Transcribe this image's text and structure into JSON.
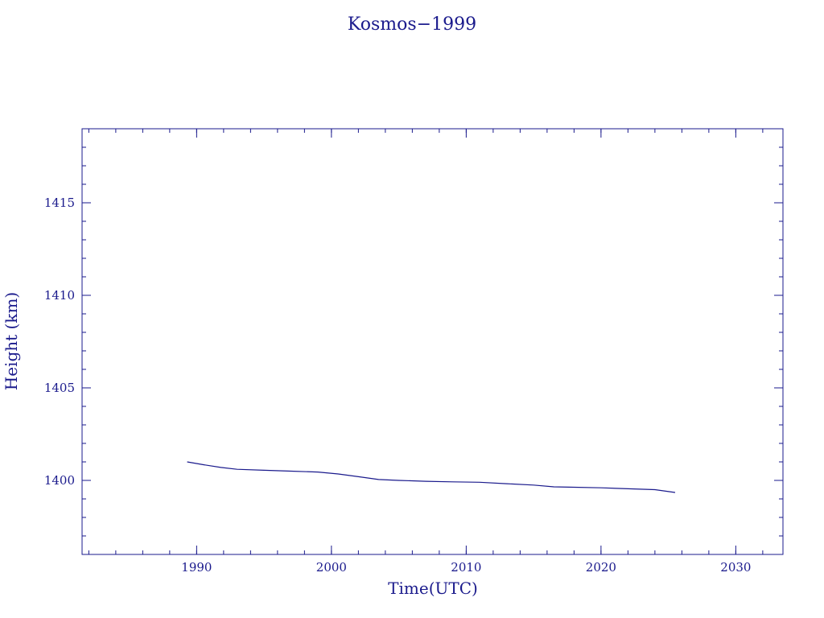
{
  "chart_data": {
    "type": "line",
    "title": "Kosmos−1999",
    "xlabel": "Time(UTC)",
    "ylabel": "Height (km)",
    "xlim": [
      1981.5,
      2033.5
    ],
    "ylim": [
      1396,
      1419
    ],
    "x_ticks": [
      1990,
      2000,
      2010,
      2020,
      2030
    ],
    "x_tick_labels": [
      "1990",
      "2000",
      "2010",
      "2020",
      "2030"
    ],
    "x_minor_step": 2,
    "y_ticks": [
      1400,
      1405,
      1410,
      1415
    ],
    "y_tick_labels": [
      "1400",
      "1405",
      "1410",
      "1415"
    ],
    "y_minor_step": 1,
    "grid": false,
    "series": [
      {
        "color": "#1a1a8c",
        "x": [
          1989.3,
          1990.5,
          1991.8,
          1993.0,
          1995.0,
          1997.0,
          1999.0,
          2000.5,
          2002.0,
          2003.5,
          2005.0,
          2007.0,
          2009.0,
          2011.0,
          2013.0,
          2015.0,
          2016.5,
          2018.0,
          2020.0,
          2022.0,
          2024.0,
          2025.5
        ],
        "y": [
          1401.0,
          1400.85,
          1400.7,
          1400.6,
          1400.55,
          1400.5,
          1400.45,
          1400.35,
          1400.2,
          1400.05,
          1400.0,
          1399.95,
          1399.92,
          1399.9,
          1399.82,
          1399.75,
          1399.65,
          1399.63,
          1399.6,
          1399.55,
          1399.5,
          1399.35
        ]
      }
    ]
  }
}
